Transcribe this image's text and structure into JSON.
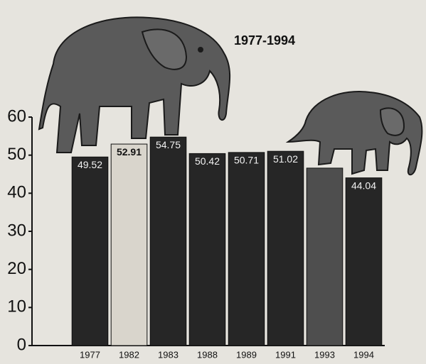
{
  "chart_data": {
    "type": "bar",
    "title": "1977-1994",
    "categories": [
      "1977",
      "1982",
      "1983",
      "1988",
      "1989",
      "1991",
      "1993",
      "1994"
    ],
    "values": [
      49.52,
      52.91,
      54.75,
      50.42,
      50.71,
      51.02,
      46.6,
      44.04
    ],
    "value_labels": [
      "49.52",
      "52.91",
      "54.75",
      "50.42",
      "50.71",
      "51.02",
      null,
      "44.04"
    ],
    "colors": [
      "#262626",
      "#d9d5cc",
      "#262626",
      "#262626",
      "#262626",
      "#262626",
      "#4e4e4e",
      "#262626"
    ],
    "ylim": [
      0,
      60
    ],
    "yticks": [
      0,
      10,
      20,
      30,
      40,
      50,
      60
    ],
    "grid": false
  }
}
